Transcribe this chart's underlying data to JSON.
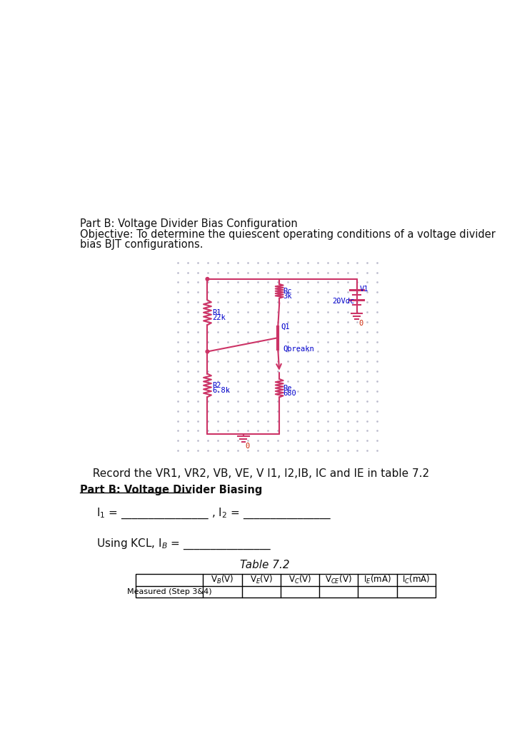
{
  "title_text": "Part B: Voltage Divider Bias Configuration",
  "objective_line1": "Objective: To determine the quiescent operating conditions of a voltage divider",
  "objective_line2": "bias BJT configurations.",
  "record_text": "  Record the VR1, VR2, VB, VE, V I1, I2,IB, IC and IE in table 7.2",
  "partb_bold": "Part B: Voltage Divider Biasing",
  "bg_color": "#ffffff",
  "circuit_color": "#cc3366",
  "label_color": "#0000cc",
  "dot_color": "#cc3366",
  "grid_color": "#bbbbcc",
  "text_color": "#111111",
  "red_color": "#cc2200"
}
